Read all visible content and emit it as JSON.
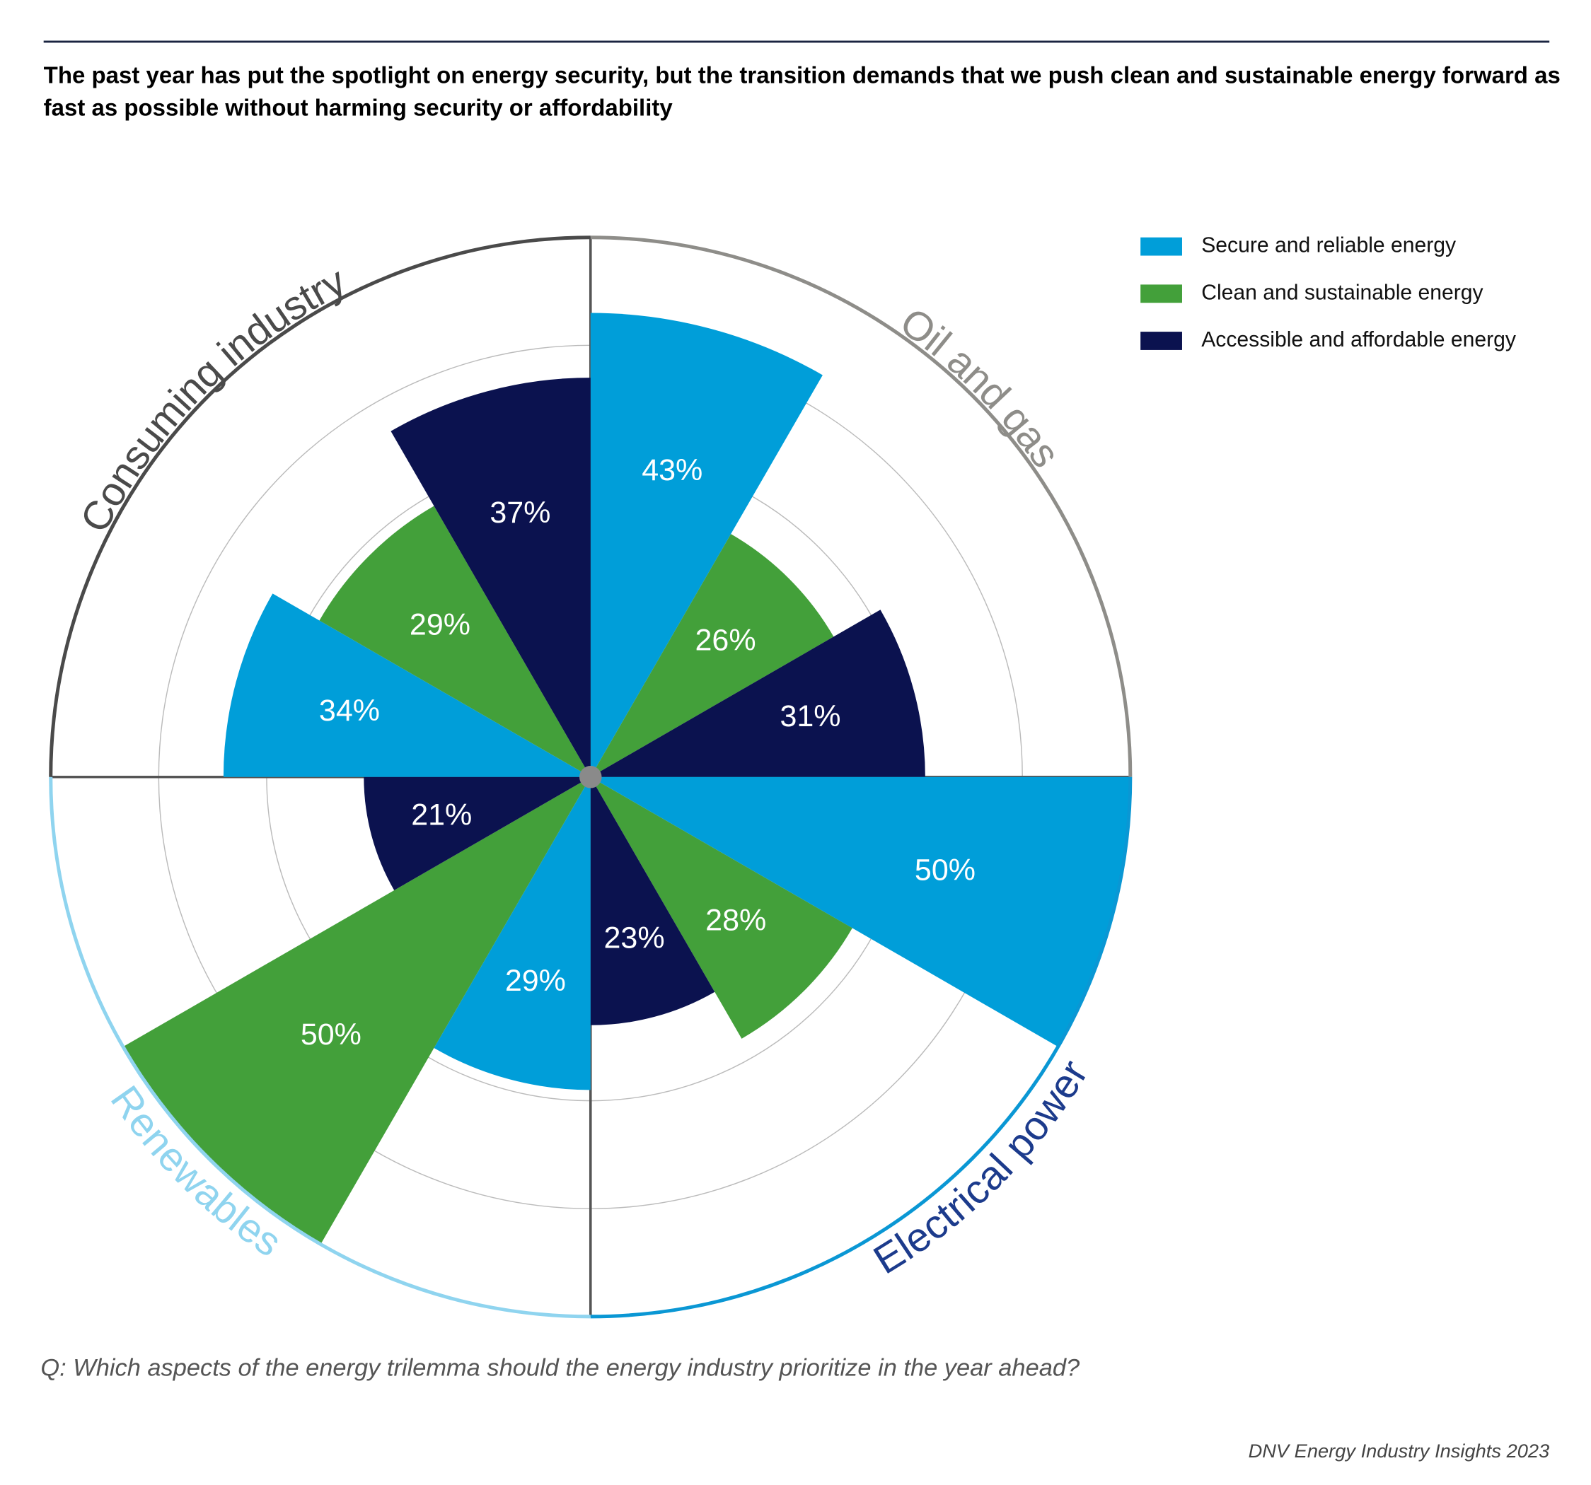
{
  "chart_data": {
    "type": "rose",
    "title": "The past year has put the spotlight on energy security, but the transition demands that we push clean and sustainable energy forward as fast as possible without harming security or affordability",
    "subtitle": "Q: Which aspects of the energy trilemma should the energy industry prioritize in the year ahead?",
    "source": "DNV Energy Industry Insights 2023",
    "categories": [
      "Oil and gas",
      "Electrical power",
      "Renewables",
      "Consuming industry"
    ],
    "category_colors": [
      "#8e8d89",
      "#1c3b8c",
      "#8fd4ef",
      "#4a4a4a"
    ],
    "arc_colors": [
      "#8e8d89",
      "#0a97d4",
      "#8fd4ef",
      "#4a4a4a"
    ],
    "series": [
      {
        "name": "Secure and reliable energy",
        "color": "#009ed9",
        "values": [
          43,
          50,
          29,
          34
        ],
        "value_labels": [
          "43%",
          "50%",
          "29%",
          "34%"
        ]
      },
      {
        "name": "Clean and sustainable energy",
        "color": "#43a03a",
        "values": [
          26,
          28,
          50,
          29
        ],
        "value_labels": [
          "26%",
          "28%",
          "50%",
          "29%"
        ]
      },
      {
        "name": "Accessible and affordable energy",
        "color": "#0b124f",
        "values": [
          31,
          23,
          21,
          37
        ],
        "value_labels": [
          "31%",
          "23%",
          "21%",
          "37%"
        ]
      }
    ],
    "rlim": [
      0,
      50
    ],
    "rticks": [
      10,
      20,
      30,
      40,
      50
    ],
    "grid": true,
    "legend": "top-right"
  }
}
